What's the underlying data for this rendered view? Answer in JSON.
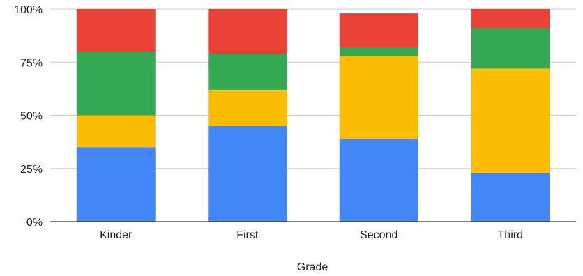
{
  "chart_data": {
    "type": "bar",
    "stacked": true,
    "title": "",
    "xlabel": "Grade",
    "ylabel": "",
    "ylim": [
      0,
      100
    ],
    "y_ticks": [
      "0%",
      "25%",
      "50%",
      "75%",
      "100%"
    ],
    "y_tick_values": [
      0,
      25,
      50,
      75,
      100
    ],
    "grid": true,
    "legend": "none",
    "categories": [
      "Kinder",
      "First",
      "Second",
      "Third"
    ],
    "series": [
      {
        "color": "#4285F4",
        "values": [
          35,
          45,
          39,
          23
        ]
      },
      {
        "color": "#FBBC04",
        "values": [
          15,
          17,
          39,
          49
        ]
      },
      {
        "color": "#34A853",
        "values": [
          30,
          17,
          4,
          19
        ]
      },
      {
        "color": "#EA4335",
        "values": [
          20,
          21,
          16,
          9
        ]
      }
    ]
  }
}
